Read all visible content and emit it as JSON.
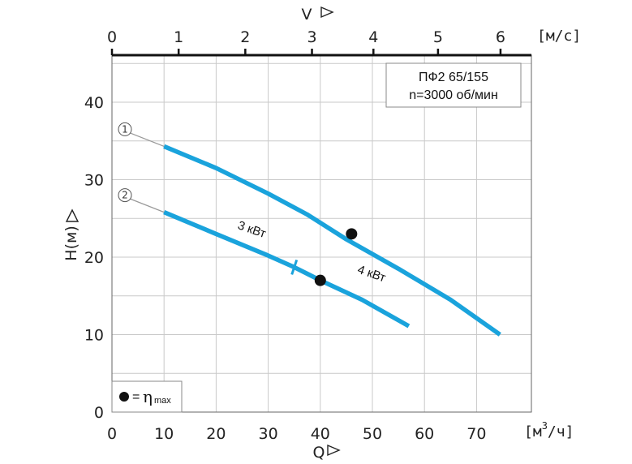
{
  "chart_data": {
    "type": "line",
    "title": "",
    "info_box": {
      "line1": "ПФ2 65/155",
      "line2": "n=3000 об/мин"
    },
    "x_axis": {
      "label": "Q",
      "unit": "[м³/ч]",
      "unit_main": "[м",
      "unit_sup": "3",
      "unit_tail": "/ч]",
      "range": [
        0,
        80
      ],
      "ticks": [
        0,
        10,
        20,
        30,
        40,
        50,
        60,
        70
      ]
    },
    "top_axis": {
      "label": "V",
      "unit": "[м/с]",
      "range": [
        0,
        7.2
      ],
      "ticks": [
        0,
        1,
        2,
        3,
        4,
        5,
        6
      ],
      "q_at_tick": [
        0,
        12.8,
        25.6,
        38.4,
        50.2,
        62.6,
        74.6
      ]
    },
    "y_axis": {
      "label": "H(м)",
      "range": [
        0,
        45
      ],
      "ticks": [
        0,
        10,
        20,
        30,
        40
      ]
    },
    "grid": true,
    "series": [
      {
        "id": "1",
        "color": "#1aa3dc",
        "dashed_points": [
          [
            0,
            36.5
          ],
          [
            10,
            34.3
          ]
        ],
        "points": [
          [
            10,
            34.3
          ],
          [
            20,
            31.5
          ],
          [
            30,
            28.2
          ],
          [
            37.5,
            25.5
          ],
          [
            45,
            22.3
          ],
          [
            55,
            18.5
          ],
          [
            65,
            14.5
          ],
          [
            74.5,
            10.0
          ]
        ],
        "eta_max": [
          46,
          23
        ]
      },
      {
        "id": "2",
        "color": "#1aa3dc",
        "dashed_points": [
          [
            0,
            28.0
          ],
          [
            10,
            25.8
          ]
        ],
        "points": [
          [
            10,
            25.8
          ],
          [
            20,
            23.0
          ],
          [
            30,
            20.2
          ],
          [
            35,
            18.7
          ],
          [
            40,
            17.0
          ],
          [
            48,
            14.5
          ],
          [
            57,
            11.1
          ]
        ],
        "eta_max": [
          40,
          17
        ],
        "power_change_q": 35,
        "power_labels": [
          {
            "text": "3 кВт",
            "q": 24,
            "h": 23.7,
            "angle": 19
          },
          {
            "text": "4 кВт",
            "q": 47,
            "h": 18.0,
            "angle": 19
          }
        ]
      }
    ],
    "legend": {
      "symbol": "=",
      "eta": "η",
      "sub": "max"
    }
  }
}
